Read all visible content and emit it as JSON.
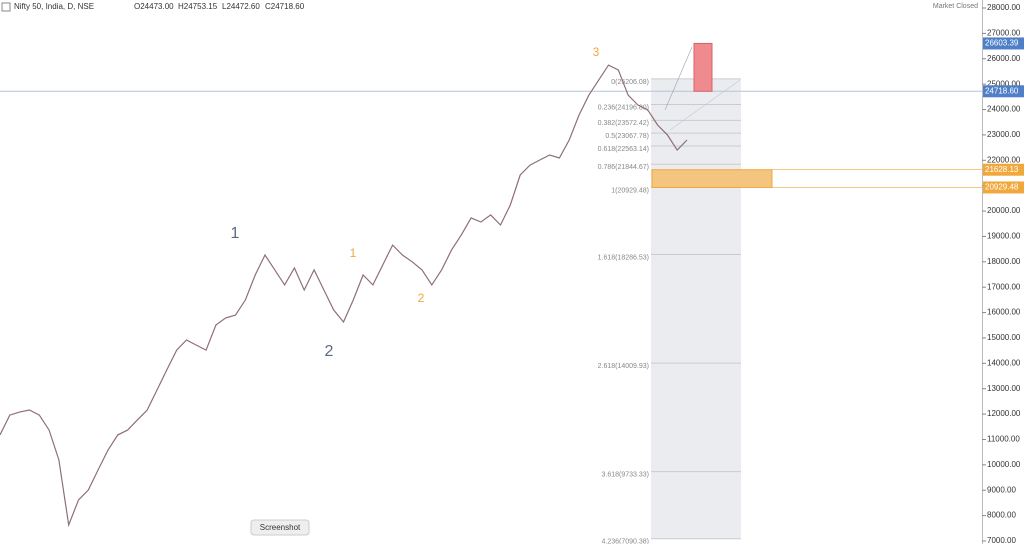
{
  "header": {
    "symbol": "Nifty 50, India, D, NSE",
    "open": "O24473.00",
    "high": "H24753.15",
    "low": "L24472.60",
    "close": "C24718.60",
    "status": "Market Closed"
  },
  "screenshot_button": "Screenshot",
  "chart_data": {
    "type": "line",
    "categories": [
      null,
      null,
      null,
      null,
      null,
      null,
      null,
      null,
      null,
      null,
      null,
      null,
      null,
      null,
      null,
      null,
      null,
      null,
      null,
      null,
      null,
      null,
      null,
      null,
      null,
      null,
      null,
      null,
      null,
      null,
      null,
      null,
      null,
      null,
      null,
      null,
      null,
      null,
      null,
      null,
      null,
      null,
      null,
      null,
      null,
      null,
      null,
      null,
      null,
      null,
      null,
      null,
      null,
      null,
      null,
      null,
      null,
      null,
      null,
      null,
      null,
      null,
      null,
      null,
      null,
      null,
      null,
      null,
      null,
      null,
      null
    ],
    "values": [
      11180,
      11960,
      12080,
      12160,
      11960,
      11370,
      10190,
      7630,
      8620,
      9010,
      9800,
      10580,
      11180,
      11370,
      11770,
      12160,
      12950,
      13740,
      14520,
      14920,
      14720,
      14520,
      15510,
      15790,
      15900,
      16500,
      17480,
      18270,
      17680,
      17090,
      17760,
      16890,
      17680,
      16890,
      16100,
      15630,
      16500,
      17480,
      17090,
      17880,
      18660,
      18270,
      18000,
      17680,
      17090,
      17680,
      18460,
      19060,
      19730,
      19570,
      19850,
      19450,
      20240,
      21420,
      21810,
      22010,
      22210,
      22090,
      22800,
      23780,
      24570,
      25160,
      25750,
      25560,
      24570,
      24180,
      23990,
      23390,
      23000,
      22400,
      22800
    ],
    "color": "#8e6f74",
    "ylim": [
      7000,
      28000
    ],
    "yticks": [
      {
        "value": 7000,
        "label": "7000.00"
      },
      {
        "value": 8000,
        "label": "8000.00"
      },
      {
        "value": 9000,
        "label": "9000.00"
      },
      {
        "value": 10000,
        "label": "10000.00"
      },
      {
        "value": 11000,
        "label": "11000.00"
      },
      {
        "value": 12000,
        "label": "12000.00"
      },
      {
        "value": 13000,
        "label": "13000.00"
      },
      {
        "value": 14000,
        "label": "14000.00"
      },
      {
        "value": 15000,
        "label": "15000.00"
      },
      {
        "value": 16000,
        "label": "16000.00"
      },
      {
        "value": 17000,
        "label": "17000.00"
      },
      {
        "value": 18000,
        "label": "18000.00"
      },
      {
        "value": 19000,
        "label": "19000.00"
      },
      {
        "value": 20000,
        "label": "20000.00"
      },
      {
        "value": 21000,
        "label": "21000.00"
      },
      {
        "value": 22000,
        "label": "22000.00"
      },
      {
        "value": 23000,
        "label": "23000.00"
      },
      {
        "value": 24000,
        "label": "24000.00"
      },
      {
        "value": 25000,
        "label": "25000.00"
      },
      {
        "value": 26000,
        "label": "26000.00"
      },
      {
        "value": 27000,
        "label": "27000.00"
      },
      {
        "value": 28000,
        "label": "28000.00"
      }
    ],
    "fib_levels": [
      {
        "value": 25206.08,
        "label": "0(25206.08)"
      },
      {
        "value": 24196.8,
        "label": "0.236(24196.80)"
      },
      {
        "value": 23572.42,
        "label": "0.382(23572.42)"
      },
      {
        "value": 23067.78,
        "label": "0.5(23067.78)"
      },
      {
        "value": 22563.14,
        "label": "0.618(22563.14)"
      },
      {
        "value": 21844.67,
        "label": "0.786(21844.67)"
      },
      {
        "value": 20929.48,
        "label": "1(20929.48)"
      },
      {
        "value": 18286.53,
        "label": "1.618(18286.53)"
      },
      {
        "value": 14009.93,
        "label": "2.618(14009.93)"
      },
      {
        "value": 9733.33,
        "label": "3.618(9733.33)"
      },
      {
        "value": 7090.38,
        "label": "4.236(7090.38)"
      }
    ],
    "price_lines": [
      {
        "price": 26603.39,
        "color": "#4f7fc7"
      },
      {
        "price": {
          "value": 24718.6,
          "label": "24718.60"
        },
        "color": "#4f7fc7"
      },
      {
        "price": 21628.13,
        "color": "#f0a83c"
      },
      {
        "price": 20929.48,
        "color": "#f0a83c"
      }
    ],
    "wave_labels": [
      {
        "text": "1",
        "color": "#5d6b7e"
      },
      {
        "text": "2",
        "color": "#5d6b7e"
      },
      {
        "text": "1",
        "color": "#f0a83c"
      },
      {
        "text": "2",
        "color": "#f0a83c"
      },
      {
        "text": "3",
        "color": "#f0a83c"
      }
    ]
  }
}
